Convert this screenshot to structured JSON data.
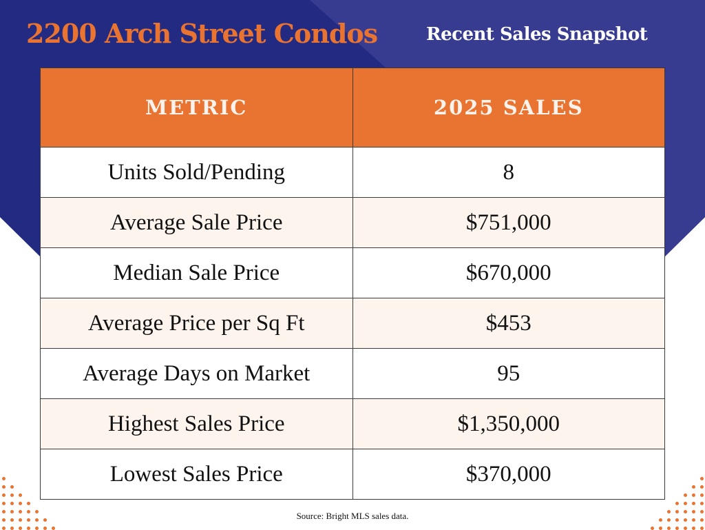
{
  "header": {
    "title": "2200 Arch Street Condos",
    "subtitle": "Recent Sales Snapshot"
  },
  "colors": {
    "navy": "#232a82",
    "navy_light": "#373c91",
    "orange": "#e97330",
    "row_alt": "#fdf4ee"
  },
  "table": {
    "columns": [
      "METRIC",
      "2025 SALES"
    ],
    "rows": [
      {
        "metric": "Units Sold/Pending",
        "value": "8"
      },
      {
        "metric": "Average Sale Price",
        "value": "$751,000"
      },
      {
        "metric": "Median Sale Price",
        "value": "$670,000"
      },
      {
        "metric": "Average Price per Sq Ft",
        "value": "$453"
      },
      {
        "metric": "Average Days on Market",
        "value": "95"
      },
      {
        "metric": "Highest Sales Price",
        "value": "$1,350,000"
      },
      {
        "metric": "Lowest Sales Price",
        "value": "$370,000"
      }
    ]
  },
  "footer": {
    "source": "Source: Bright MLS sales data."
  }
}
